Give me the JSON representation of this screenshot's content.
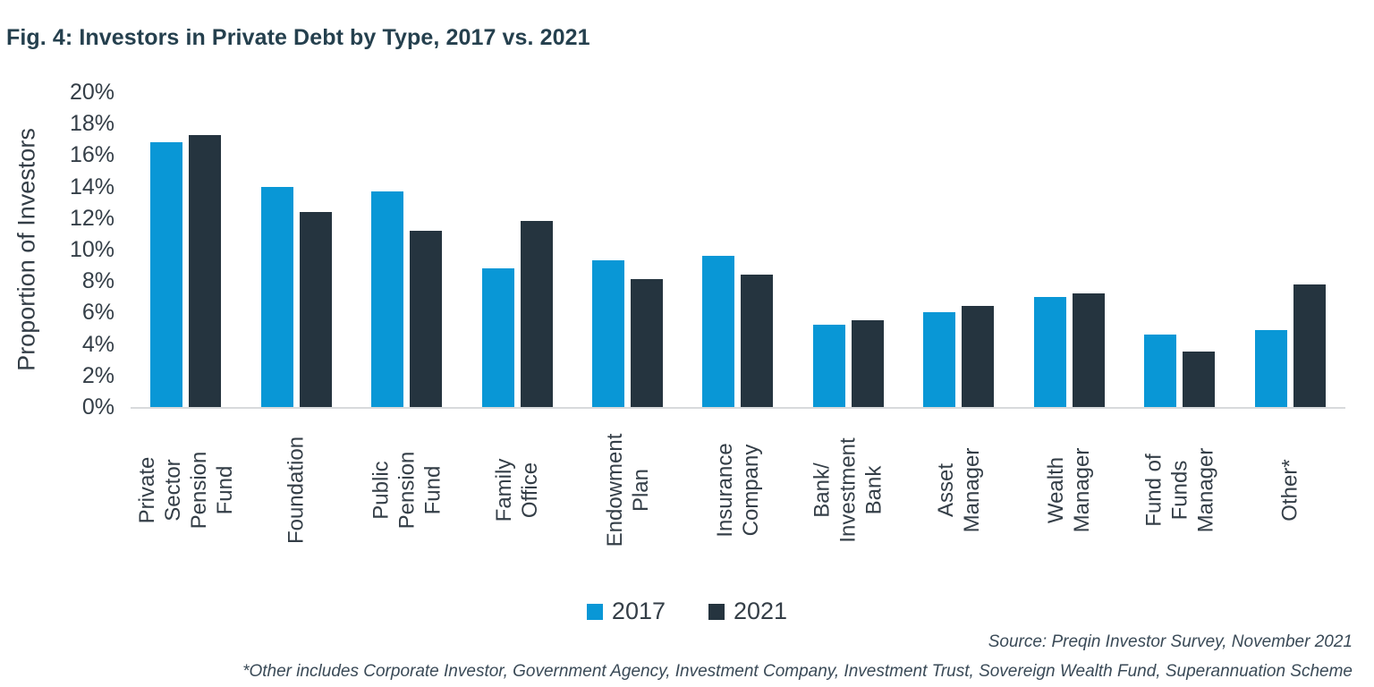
{
  "title": "Fig. 4: Investors in Private Debt by Type, 2017 vs. 2021",
  "y_axis": {
    "title": "Proportion of Investors",
    "tick_suffix": "%"
  },
  "legend": {
    "items": [
      {
        "label": "2017",
        "color": "#0997d6"
      },
      {
        "label": "2021",
        "color": "#25343f"
      }
    ]
  },
  "footer": {
    "source": "Source: Preqin Investor Survey, November 2021",
    "note": "*Other includes Corporate Investor, Government Agency, Investment Company, Investment Trust, Sovereign Wealth Fund, Superannuation Scheme"
  },
  "chart_data": {
    "type": "bar",
    "title": "Fig. 4: Investors in Private Debt by Type, 2017 vs. 2021",
    "categories": [
      "Private Sector Pension Fund",
      "Foundation",
      "Public Pension Fund",
      "Family Office",
      "Endowment Plan",
      "Insurance Company",
      "Bank/Investment Bank",
      "Asset Manager",
      "Wealth Manager",
      "Fund of Funds Manager",
      "Other*"
    ],
    "category_label_lines": [
      "Private\nSector\nPension Fund",
      "Foundation",
      "Public\nPension\nFund",
      "Family\nOffice",
      "Endowment\nPlan",
      "Insurance\nCompany",
      "Bank/\nInvestment\nBank",
      "Asset\nManager",
      "Wealth\nManager",
      "Fund of\nFunds\nManager",
      "Other*"
    ],
    "series": [
      {
        "name": "2017",
        "color": "#0997d6",
        "values": [
          16.8,
          14.0,
          13.7,
          8.8,
          9.3,
          9.6,
          5.2,
          6.0,
          7.0,
          4.6,
          4.9
        ]
      },
      {
        "name": "2021",
        "color": "#25343f",
        "values": [
          17.3,
          12.4,
          11.2,
          11.8,
          8.1,
          8.4,
          5.5,
          6.4,
          7.2,
          3.5,
          7.8
        ]
      }
    ],
    "xlabel": "",
    "ylabel": "Proportion of Investors",
    "ylim": [
      0,
      20
    ],
    "ytick_step": 2,
    "ytick_format": "percent",
    "grid": false,
    "legend_position": "bottom-center",
    "category_label_rotation": 90
  }
}
